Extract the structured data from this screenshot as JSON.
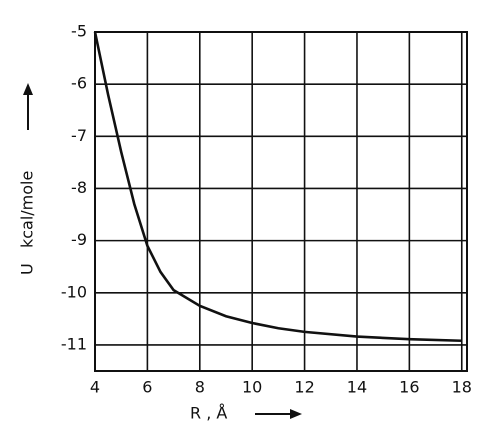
{
  "chart_data": {
    "type": "line",
    "x_label": "R , Å",
    "y_label": "U   kcal/mole",
    "x": [
      4,
      4.5,
      5,
      5.5,
      6,
      6.5,
      7,
      8,
      9,
      10,
      11,
      12,
      14,
      16,
      18
    ],
    "series": [
      {
        "color": "#111111",
        "values": [
          -5,
          -6.2,
          -7.3,
          -8.3,
          -9.1,
          -9.6,
          -9.95,
          -10.25,
          -10.45,
          -10.58,
          -10.68,
          -10.75,
          -10.84,
          -10.89,
          -10.92
        ]
      }
    ],
    "xlim": [
      4,
      18.2
    ],
    "ylim": [
      -11.5,
      -5
    ],
    "xticks": [
      4,
      6,
      8,
      10,
      12,
      14,
      16,
      18
    ],
    "yticks": [
      -5,
      -6,
      -7,
      -8,
      -9,
      -10,
      -11
    ],
    "grid": true
  }
}
